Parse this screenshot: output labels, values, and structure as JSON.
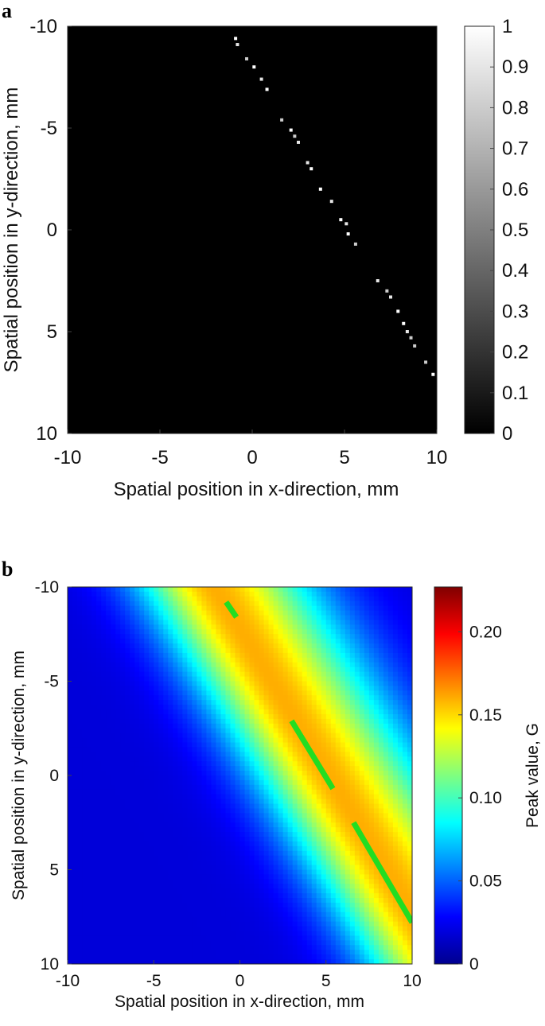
{
  "chart_data": [
    {
      "panel_label": "a",
      "type": "heatmap",
      "xlabel": "Spatial position in x-direction, mm",
      "ylabel": "Spatial position in y-direction, mm",
      "xlim": [
        -10,
        10
      ],
      "ylim": [
        -10,
        10
      ],
      "y_axis_reversed": true,
      "x_ticks": [
        "-10",
        "-5",
        "0",
        "5",
        "10"
      ],
      "y_ticks": [
        "-10",
        "-5",
        "0",
        "5",
        "10"
      ],
      "colormap": "gray",
      "background_value": 0,
      "colorbar": {
        "label": "",
        "range": [
          0,
          1
        ],
        "ticks": [
          "0",
          "0.1",
          "0.2",
          "0.3",
          "0.4",
          "0.5",
          "0.6",
          "0.7",
          "0.8",
          "0.9",
          "1"
        ]
      },
      "points": [
        {
          "x": -0.9,
          "y": -9.4,
          "v": 1.0
        },
        {
          "x": -0.8,
          "y": -9.1,
          "v": 0.9
        },
        {
          "x": -0.3,
          "y": -8.4,
          "v": 0.8
        },
        {
          "x": 0.1,
          "y": -8.0,
          "v": 1.0
        },
        {
          "x": 0.5,
          "y": -7.4,
          "v": 0.9
        },
        {
          "x": 0.8,
          "y": -6.9,
          "v": 1.0
        },
        {
          "x": 1.6,
          "y": -5.4,
          "v": 0.8
        },
        {
          "x": 2.1,
          "y": -4.9,
          "v": 1.0
        },
        {
          "x": 2.3,
          "y": -4.6,
          "v": 0.8
        },
        {
          "x": 2.5,
          "y": -4.3,
          "v": 0.9
        },
        {
          "x": 3.0,
          "y": -3.3,
          "v": 0.9
        },
        {
          "x": 3.2,
          "y": -3.0,
          "v": 1.0
        },
        {
          "x": 3.7,
          "y": -2.0,
          "v": 1.0
        },
        {
          "x": 4.3,
          "y": -1.4,
          "v": 0.9
        },
        {
          "x": 4.8,
          "y": -0.5,
          "v": 1.0
        },
        {
          "x": 5.1,
          "y": -0.3,
          "v": 0.9
        },
        {
          "x": 5.2,
          "y": 0.2,
          "v": 1.0
        },
        {
          "x": 5.6,
          "y": 0.7,
          "v": 0.8
        },
        {
          "x": 6.8,
          "y": 2.5,
          "v": 0.9
        },
        {
          "x": 7.3,
          "y": 3.0,
          "v": 0.8
        },
        {
          "x": 7.5,
          "y": 3.3,
          "v": 0.9
        },
        {
          "x": 7.9,
          "y": 4.0,
          "v": 1.0
        },
        {
          "x": 8.2,
          "y": 4.6,
          "v": 1.0
        },
        {
          "x": 8.4,
          "y": 5.0,
          "v": 0.9
        },
        {
          "x": 8.6,
          "y": 5.3,
          "v": 0.8
        },
        {
          "x": 8.8,
          "y": 5.7,
          "v": 0.8
        },
        {
          "x": 9.4,
          "y": 6.5,
          "v": 0.8
        },
        {
          "x": 9.8,
          "y": 7.1,
          "v": 1.0
        }
      ]
    },
    {
      "panel_label": "b",
      "type": "heatmap",
      "xlabel": "Spatial position in x-direction, mm",
      "ylabel": "Spatial position in y-direction, mm",
      "xlim": [
        -10,
        10
      ],
      "ylim": [
        -10,
        10
      ],
      "y_axis_reversed": true,
      "x_ticks": [
        "-10",
        "-5",
        "0",
        "5",
        "10"
      ],
      "y_ticks": [
        "-10",
        "-5",
        "0",
        "5",
        "10"
      ],
      "colormap": "jet",
      "colorbar": {
        "label": "Peak value, G",
        "range": [
          0,
          0.227
        ],
        "ticks": [
          "0",
          "0.05",
          "0.10",
          "0.15",
          "0.20"
        ],
        "tick_values": [
          0,
          0.05,
          0.1,
          0.15,
          0.2
        ]
      },
      "field": {
        "description_values": "ridge along a line from (-1.5,-10) to (10,7.5)",
        "ridge_start": [
          -1.5,
          -10
        ],
        "ridge_end": [
          10.3,
          7.7
        ],
        "peak_value": 0.16,
        "background_value": 0.02
      },
      "overlay_segments": {
        "color": "#22dd22",
        "segments": [
          {
            "x1": -0.8,
            "y1": -9.2,
            "x2": -0.2,
            "y2": -8.4
          },
          {
            "x1": 3.0,
            "y1": -2.9,
            "x2": 5.4,
            "y2": 0.7
          },
          {
            "x1": 6.6,
            "y1": 2.5,
            "x2": 10.0,
            "y2": 7.8
          }
        ]
      }
    }
  ]
}
